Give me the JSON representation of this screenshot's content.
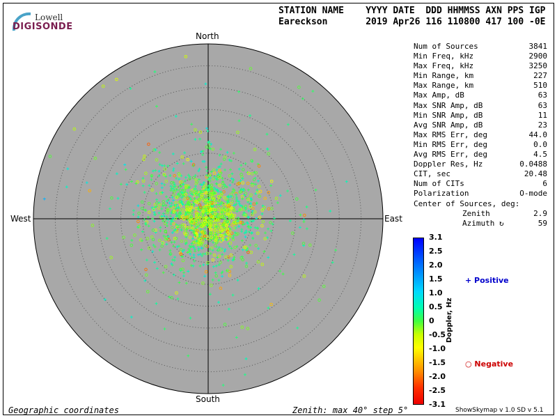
{
  "logo": {
    "line1": "Lowell",
    "line2": "DIGISONDE",
    "arc_color": "#4aa3c8"
  },
  "header": {
    "labels": "STATION NAME    YYYY DATE  DDD HHMMSS AXN PPS IGP",
    "values": "Eareckson       2019 Apr26 116 110800 417 100 -0E"
  },
  "stats": [
    {
      "label": "Num of Sources",
      "value": "3841"
    },
    {
      "label": "Min Freq, kHz",
      "value": "2900"
    },
    {
      "label": "Max Freq, kHz",
      "value": "3250"
    },
    {
      "label": "Min Range, km",
      "value": "227"
    },
    {
      "label": "Max Range, km",
      "value": "510"
    },
    {
      "label": "Max Amp, dB",
      "value": "63"
    },
    {
      "label": "Max SNR Amp, dB",
      "value": "63"
    },
    {
      "label": "Min SNR Amp, dB",
      "value": "11"
    },
    {
      "label": "Avg SNR Amp, dB",
      "value": "23"
    },
    {
      "label": "Max RMS Err, deg",
      "value": "44.0"
    },
    {
      "label": "Min RMS Err, deg",
      "value": "0.0"
    },
    {
      "label": "Avg RMS Err, deg",
      "value": "4.5"
    },
    {
      "label": "Doppler Res, Hz",
      "value": "0.0488"
    },
    {
      "label": "CIT, sec",
      "value": "20.48"
    },
    {
      "label": "Num of CITs",
      "value": "6"
    },
    {
      "label": "Polarization",
      "value": "O-mode"
    }
  ],
  "center_title": "Center of Sources, deg:",
  "center": [
    {
      "label": "Zenith",
      "value": "2.9"
    },
    {
      "label": "Azimuth ↻",
      "value": "59"
    }
  ],
  "cardinals": {
    "north": "North",
    "south": "South",
    "east": "East",
    "west": "West"
  },
  "colorbar": {
    "label": "Doppler, Hz",
    "ticks": [
      "3.1",
      "2.5",
      "2.0",
      "1.5",
      "1.0",
      "0.5",
      "0",
      "-0.5",
      "-1.0",
      "-1.5",
      "-2.0",
      "-2.5",
      "-3.1"
    ]
  },
  "legend": {
    "positive": "+ Positive",
    "negative": "○ Negative",
    "positive_color": "#0000cc",
    "negative_color": "#cc0000"
  },
  "footer": {
    "left": "Geographic coordinates",
    "middle": "Zenith: max 40°  step 5°",
    "right": "ShowSkymap v 1.0   SD v 5.1"
  },
  "chart_data": {
    "type": "scatter",
    "projection": "polar skymap",
    "zenith_max_deg": 40,
    "zenith_step_deg": 5,
    "num_sources": 3841,
    "center_zenith_deg": 2.9,
    "center_azimuth_deg": 59,
    "doppler_range_hz": [
      -3.1,
      3.1
    ],
    "background": "#a8a8a8",
    "markers": {
      "positive": "plus",
      "negative": "circle"
    }
  }
}
